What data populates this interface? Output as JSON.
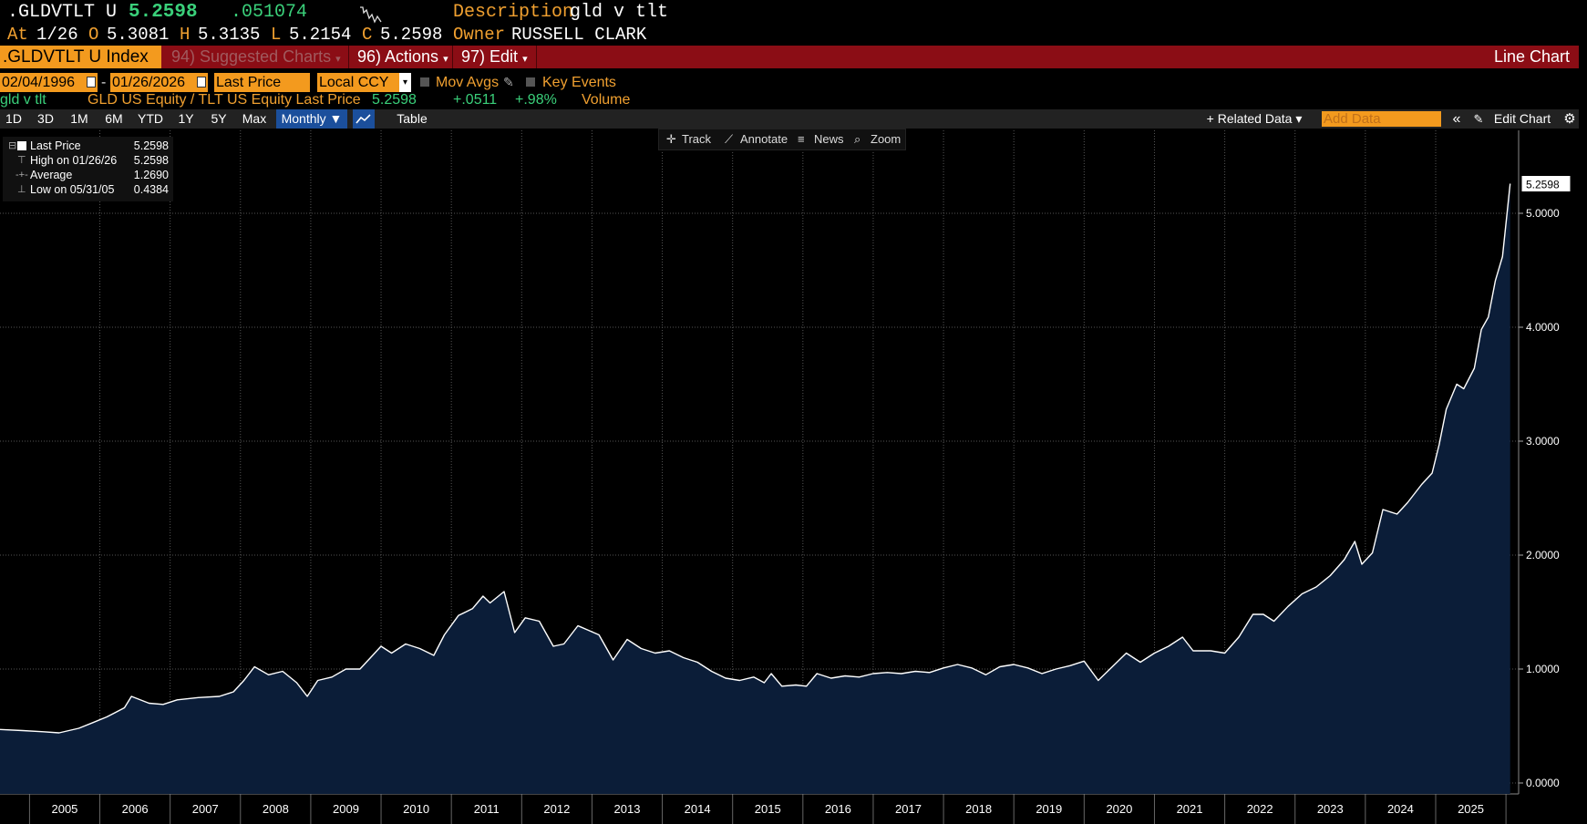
{
  "header": {
    "ticker": ".GLDVTLT U",
    "last": "5.2598",
    "change": ".051074",
    "desc_label": "Description",
    "desc_value": "gld v tlt",
    "at_label": "At",
    "at_value": "1/26",
    "o_label": "O",
    "o_value": "5.3081",
    "h_label": "H",
    "h_value": "5.3135",
    "l_label": "L",
    "l_value": "5.2154",
    "c_label": "C",
    "c_value": "5.2598",
    "owner_label": "Owner",
    "owner_value": "RUSSELL CLARK"
  },
  "menubar": {
    "index_title": ".GLDVTLT U Index",
    "suggested": "94) Suggested Charts",
    "actions": "96) Actions",
    "edit": "97) Edit",
    "chart_type": "Line Chart"
  },
  "daterow": {
    "start_date": "02/04/1996",
    "dash": "-",
    "end_date": "01/26/2026",
    "field": "Last Price",
    "currency": "Local CCY",
    "mov_avgs": "Mov Avgs",
    "key_events": "Key Events"
  },
  "security": {
    "name": "gld v tlt",
    "formula": "GLD US Equity / TLT US Equity Last Price",
    "value": "5.2598",
    "change": "+.0511",
    "pct": "+.98%",
    "volume": "Volume"
  },
  "periodbar": {
    "periods": [
      "1D",
      "3D",
      "1M",
      "6M",
      "YTD",
      "1Y",
      "5Y",
      "Max"
    ],
    "frequency": "Monthly ▼",
    "table": "Table",
    "related": "+ Related Data ▾",
    "add_data_placeholder": "Add Data",
    "edit_chart": "Edit Chart"
  },
  "toolbar": {
    "track": "Track",
    "annotate": "Annotate",
    "news": "News",
    "zoom": "Zoom"
  },
  "legend": {
    "last_label": "Last Price",
    "last_value": "5.2598",
    "high_label": "High on 01/26/26",
    "high_value": "5.2598",
    "avg_label": "Average",
    "avg_value": "1.2690",
    "low_label": "Low on 05/31/05",
    "low_value": "0.4384"
  },
  "colors": {
    "background": "#000000",
    "area_fill": "#0b1d38",
    "line": "#ffffff",
    "grid": "#555555",
    "accent_orange": "#f39a1e",
    "menu_red": "#8b0d15"
  },
  "chart_data": {
    "type": "area",
    "series": [
      {
        "name": "GLD US Equity / TLT US Equity Last Price",
        "points": [
          [
            2004.58,
            0.47
          ],
          [
            2004.9,
            0.46
          ],
          [
            2005.2,
            0.45
          ],
          [
            2005.42,
            0.44
          ],
          [
            2005.7,
            0.48
          ],
          [
            2005.9,
            0.53
          ],
          [
            2006.1,
            0.58
          ],
          [
            2006.35,
            0.66
          ],
          [
            2006.45,
            0.76
          ],
          [
            2006.7,
            0.7
          ],
          [
            2006.9,
            0.69
          ],
          [
            2007.1,
            0.73
          ],
          [
            2007.4,
            0.75
          ],
          [
            2007.7,
            0.76
          ],
          [
            2007.9,
            0.8
          ],
          [
            2008.05,
            0.9
          ],
          [
            2008.2,
            1.02
          ],
          [
            2008.4,
            0.95
          ],
          [
            2008.6,
            0.98
          ],
          [
            2008.8,
            0.88
          ],
          [
            2008.95,
            0.76
          ],
          [
            2009.1,
            0.9
          ],
          [
            2009.3,
            0.93
          ],
          [
            2009.5,
            1.0
          ],
          [
            2009.7,
            1.0
          ],
          [
            2009.85,
            1.1
          ],
          [
            2010.0,
            1.2
          ],
          [
            2010.15,
            1.14
          ],
          [
            2010.35,
            1.22
          ],
          [
            2010.55,
            1.18
          ],
          [
            2010.75,
            1.12
          ],
          [
            2010.9,
            1.3
          ],
          [
            2011.1,
            1.47
          ],
          [
            2011.3,
            1.53
          ],
          [
            2011.45,
            1.64
          ],
          [
            2011.55,
            1.58
          ],
          [
            2011.75,
            1.68
          ],
          [
            2011.9,
            1.32
          ],
          [
            2012.05,
            1.45
          ],
          [
            2012.25,
            1.42
          ],
          [
            2012.45,
            1.2
          ],
          [
            2012.6,
            1.22
          ],
          [
            2012.8,
            1.38
          ],
          [
            2012.95,
            1.34
          ],
          [
            2013.1,
            1.3
          ],
          [
            2013.3,
            1.08
          ],
          [
            2013.5,
            1.26
          ],
          [
            2013.7,
            1.18
          ],
          [
            2013.9,
            1.14
          ],
          [
            2014.1,
            1.16
          ],
          [
            2014.3,
            1.1
          ],
          [
            2014.5,
            1.06
          ],
          [
            2014.7,
            0.98
          ],
          [
            2014.9,
            0.92
          ],
          [
            2015.1,
            0.9
          ],
          [
            2015.3,
            0.93
          ],
          [
            2015.45,
            0.88
          ],
          [
            2015.55,
            0.96
          ],
          [
            2015.7,
            0.85
          ],
          [
            2015.9,
            0.86
          ],
          [
            2016.05,
            0.85
          ],
          [
            2016.2,
            0.96
          ],
          [
            2016.4,
            0.92
          ],
          [
            2016.6,
            0.94
          ],
          [
            2016.8,
            0.93
          ],
          [
            2017.0,
            0.96
          ],
          [
            2017.2,
            0.97
          ],
          [
            2017.4,
            0.96
          ],
          [
            2017.6,
            0.98
          ],
          [
            2017.8,
            0.97
          ],
          [
            2018.0,
            1.01
          ],
          [
            2018.2,
            1.04
          ],
          [
            2018.4,
            1.01
          ],
          [
            2018.6,
            0.95
          ],
          [
            2018.8,
            1.02
          ],
          [
            2019.0,
            1.04
          ],
          [
            2019.2,
            1.01
          ],
          [
            2019.4,
            0.96
          ],
          [
            2019.6,
            1.0
          ],
          [
            2019.8,
            1.03
          ],
          [
            2020.0,
            1.07
          ],
          [
            2020.2,
            0.9
          ],
          [
            2020.4,
            1.02
          ],
          [
            2020.6,
            1.14
          ],
          [
            2020.8,
            1.06
          ],
          [
            2021.0,
            1.14
          ],
          [
            2021.2,
            1.2
          ],
          [
            2021.4,
            1.28
          ],
          [
            2021.55,
            1.16
          ],
          [
            2021.8,
            1.16
          ],
          [
            2022.0,
            1.14
          ],
          [
            2022.2,
            1.28
          ],
          [
            2022.4,
            1.48
          ],
          [
            2022.55,
            1.48
          ],
          [
            2022.7,
            1.42
          ],
          [
            2022.9,
            1.55
          ],
          [
            2023.1,
            1.66
          ],
          [
            2023.3,
            1.72
          ],
          [
            2023.5,
            1.82
          ],
          [
            2023.7,
            1.96
          ],
          [
            2023.85,
            2.12
          ],
          [
            2023.95,
            1.92
          ],
          [
            2024.1,
            2.02
          ],
          [
            2024.25,
            2.4
          ],
          [
            2024.45,
            2.36
          ],
          [
            2024.6,
            2.46
          ],
          [
            2024.8,
            2.62
          ],
          [
            2024.95,
            2.72
          ],
          [
            2025.05,
            2.97
          ],
          [
            2025.15,
            3.28
          ],
          [
            2025.3,
            3.5
          ],
          [
            2025.4,
            3.46
          ],
          [
            2025.55,
            3.64
          ],
          [
            2025.65,
            3.98
          ],
          [
            2025.75,
            4.09
          ],
          [
            2025.85,
            4.41
          ],
          [
            2025.95,
            4.62
          ],
          [
            2026.06,
            5.26
          ]
        ]
      }
    ],
    "x_ticks": [
      "2005",
      "2006",
      "2007",
      "2008",
      "2009",
      "2010",
      "2011",
      "2012",
      "2013",
      "2014",
      "2015",
      "2016",
      "2017",
      "2018",
      "2019",
      "2020",
      "2021",
      "2022",
      "2023",
      "2024",
      "2025"
    ],
    "y_ticks": [
      "0.0000",
      "1.0000",
      "2.0000",
      "3.0000",
      "4.0000",
      "5.0000"
    ],
    "ylim": [
      0,
      5.7
    ],
    "xlim": [
      2004.58,
      2026.18
    ],
    "last_value_label": "5.2598",
    "grid": true
  }
}
